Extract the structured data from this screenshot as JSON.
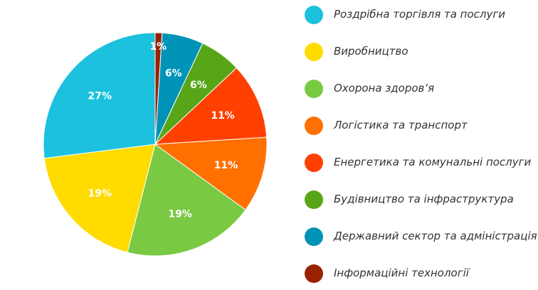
{
  "chart_data": {
    "type": "pie",
    "title": "",
    "start_angle": "top, clockwise",
    "legend_placement": "right",
    "slices": [
      {
        "label": "Інформаційні технології",
        "value": 1,
        "data_label": "1%",
        "color": "#992200"
      },
      {
        "label": "Державний сектор та адміністрація",
        "value": 6,
        "data_label": "6%",
        "color": "#0093B8"
      },
      {
        "label": "Будівництво та інфраструктура",
        "value": 6,
        "data_label": "6%",
        "color": "#58A618"
      },
      {
        "label": "Енергетика та комунальні послуги",
        "value": 11,
        "data_label": "11%",
        "color": "#FF4000"
      },
      {
        "label": "Логістика та транспорт",
        "value": 11,
        "data_label": "11%",
        "color": "#FF7000"
      },
      {
        "label": "Охорона здоров’я",
        "value": 19,
        "data_label": "19%",
        "color": "#7AC943"
      },
      {
        "label": "Виробництво",
        "value": 19,
        "data_label": "19%",
        "color": "#FFDB00"
      },
      {
        "label": "Роздрібна торгівля та послуги",
        "value": 27,
        "data_label": "27%",
        "color": "#1BC1DD"
      }
    ],
    "legend_order": [
      "Роздрібна торгівля та послуги",
      "Виробництво",
      "Охорона здоров’я",
      "Логістика та транспорт",
      "Енергетика та комунальні послуги",
      "Будівництво та інфраструктура",
      "Державний сектор та адміністрація",
      "Інформаційні технології"
    ]
  }
}
